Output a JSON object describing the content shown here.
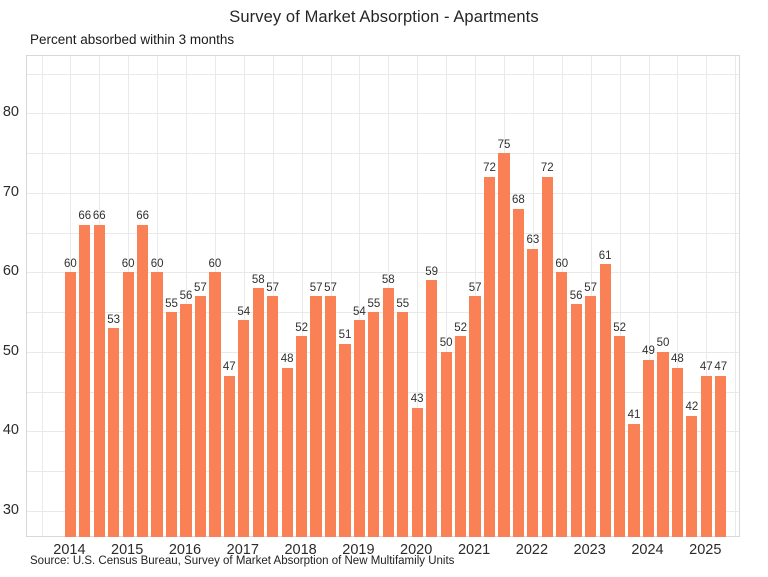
{
  "chart": {
    "title": "Survey of Market Absorption - Apartments",
    "subtitle": "Percent absorbed within 3 months",
    "source": "Source: U.S. Census Bureau, Survey of Market Absorption of New Multifamily Units"
  },
  "chart_data": {
    "type": "bar",
    "title": "Survey of Market Absorption - Apartments",
    "subtitle": "Percent absorbed within 3 months",
    "source": "Source: U.S. Census Bureau, Survey of Market Absorption of New Multifamily Units",
    "unit": "percent",
    "frequency": "quarterly",
    "categories": [
      "2014 Q1",
      "2014 Q2",
      "2014 Q3",
      "2014 Q4",
      "2015 Q1",
      "2015 Q2",
      "2015 Q3",
      "2015 Q4",
      "2016 Q1",
      "2016 Q2",
      "2016 Q3",
      "2016 Q4",
      "2017 Q1",
      "2017 Q2",
      "2017 Q3",
      "2017 Q4",
      "2018 Q1",
      "2018 Q2",
      "2018 Q3",
      "2018 Q4",
      "2019 Q1",
      "2019 Q2",
      "2019 Q3",
      "2019 Q4",
      "2020 Q1",
      "2020 Q2",
      "2020 Q3",
      "2020 Q4",
      "2021 Q1",
      "2021 Q2",
      "2021 Q3",
      "2021 Q4",
      "2022 Q1",
      "2022 Q2",
      "2022 Q3",
      "2022 Q4",
      "2023 Q1",
      "2023 Q2",
      "2023 Q3",
      "2023 Q4",
      "2024 Q1",
      "2024 Q2",
      "2024 Q3",
      "2024 Q4",
      "2025 Q1",
      "2025 Q2"
    ],
    "values": [
      60,
      66,
      66,
      53,
      60,
      66,
      60,
      55,
      56,
      57,
      60,
      47,
      54,
      58,
      57,
      48,
      52,
      57,
      57,
      51,
      54,
      55,
      58,
      55,
      43,
      59,
      50,
      52,
      57,
      72,
      75,
      68,
      63,
      72,
      60,
      56,
      57,
      61,
      52,
      41,
      49,
      50,
      48,
      42,
      47,
      47
    ],
    "data_labels": true,
    "x_tick_labels": [
      "2014",
      "2015",
      "2016",
      "2017",
      "2018",
      "2019",
      "2020",
      "2021",
      "2022",
      "2023",
      "2024",
      "2025"
    ],
    "y_tick_labels": [
      30,
      40,
      50,
      60,
      70,
      80
    ],
    "ylim": [
      26.6,
      87.2
    ],
    "xlim": [
      2013.25,
      2025.6
    ],
    "y_grid_step": 5,
    "x_grid_step": 0.5,
    "x_grid_start": 2013.5,
    "x_grid_end": 2025.5,
    "y_grid_start": 30,
    "y_grid_end": 85,
    "grid": true,
    "legend": false,
    "bar_color": "#FA8156",
    "grid_color": "#e9e9e9",
    "label_color": "#303030"
  }
}
